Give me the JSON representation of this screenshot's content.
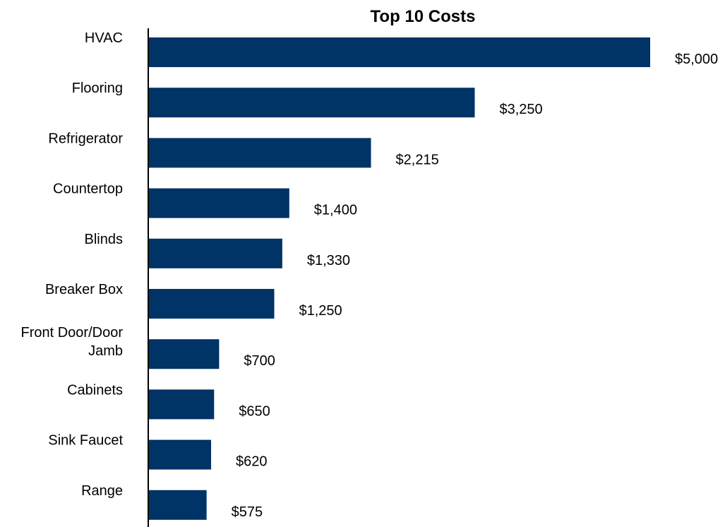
{
  "chart_data": {
    "type": "bar",
    "orientation": "horizontal",
    "title": "Top 10 Costs",
    "xlabel": "",
    "ylabel": "",
    "categories": [
      "HVAC",
      "Flooring",
      "Refrigerator",
      "Countertop",
      "Blinds",
      "Breaker Box",
      "Front Door/Door Jamb",
      "Cabinets",
      "Sink Faucet",
      "Range"
    ],
    "category_lines": [
      [
        "HVAC"
      ],
      [
        "Flooring"
      ],
      [
        "Refrigerator"
      ],
      [
        "Countertop"
      ],
      [
        "Blinds"
      ],
      [
        "Breaker Box"
      ],
      [
        "Front Door/Door",
        "Jamb"
      ],
      [
        "Cabinets"
      ],
      [
        "Sink Faucet"
      ],
      [
        "Range"
      ]
    ],
    "values": [
      5000,
      3250,
      2215,
      1400,
      1330,
      1250,
      700,
      650,
      620,
      575
    ],
    "value_labels": [
      "$5,000",
      "$3,250",
      "$2,215",
      "$1,400",
      "$1,330",
      "$1,250",
      "$700",
      "$650",
      "$620",
      "$575"
    ],
    "xlim": [
      0,
      5000
    ],
    "grid": false,
    "legend": "none",
    "bar_color": "#003366"
  }
}
